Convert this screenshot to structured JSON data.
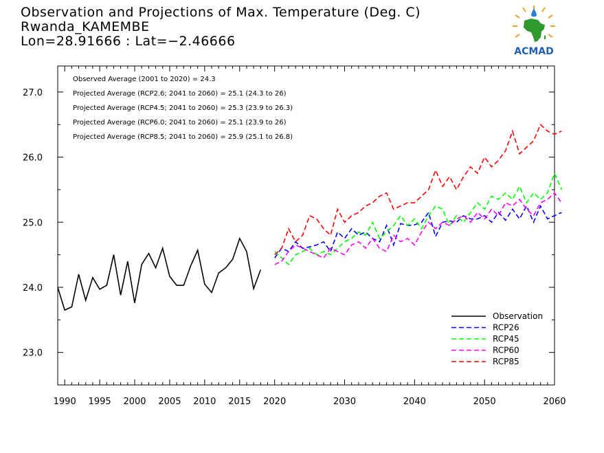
{
  "header": {
    "title": "Observation and Projections of Max. Temperature (Deg. C)",
    "location": "Rwanda_KAMEMBE",
    "coords": "Lon=28.91666 : Lat=−2.46666"
  },
  "logo": {
    "text": "ACMAD",
    "icon": "acmad-africa-logo"
  },
  "annotations": [
    "Observed Average (2001 to 2020) = 24.3",
    "Projected Average (RCP2.6; 2041 to 2060) = 25.1 (24.3 to 26)",
    "Projected Average (RCP4.5; 2041 to 2060) = 25.3 (23.9 to 26.3)",
    "Projected Average (RCP6.0; 2041 to 2060) = 25.1 (23.9 to 26)",
    "Projected Average (RCP8.5; 2041 to 2060) = 25.9 (25.1 to 26.8)"
  ],
  "colors": {
    "Observation": "#000000",
    "RCP26": "#0000ff",
    "RCP45": "#00ff00",
    "RCP60": "#ff00ff",
    "RCP85": "#ff0000"
  },
  "chart_data": {
    "type": "line",
    "xlim": [
      1989,
      2060
    ],
    "ylim": [
      22.5,
      27.4
    ],
    "x_ticks": [
      {
        "value": 1990,
        "label": "1990"
      },
      {
        "value": 1995,
        "label": "1995"
      },
      {
        "value": 2000,
        "label": "2000"
      },
      {
        "value": 2005,
        "label": "2005"
      },
      {
        "value": 2010,
        "label": "2010"
      },
      {
        "value": 2015,
        "label": "2015"
      },
      {
        "value": 2020,
        "label": "2020"
      },
      {
        "value": 2030,
        "label": "2030"
      },
      {
        "value": 2040,
        "label": "2040"
      },
      {
        "value": 2050,
        "label": "2050"
      },
      {
        "value": 2060,
        "label": "2060"
      }
    ],
    "y_ticks": [
      {
        "value": 23.0,
        "label": "23.0"
      },
      {
        "value": 24.0,
        "label": "24.0"
      },
      {
        "value": 25.0,
        "label": "25.0"
      },
      {
        "value": 26.0,
        "label": "26.0"
      },
      {
        "value": 27.0,
        "label": "27.0"
      }
    ],
    "legend_position": "bottom-right",
    "series": [
      {
        "name": "Observation",
        "dashed": false,
        "x_start": 1989,
        "values": [
          24.0,
          23.65,
          23.7,
          24.2,
          23.8,
          24.15,
          23.97,
          24.03,
          24.5,
          23.88,
          24.4,
          23.76,
          24.35,
          24.52,
          24.3,
          24.6,
          24.17,
          24.03,
          24.03,
          24.33,
          24.57,
          24.05,
          23.92,
          24.22,
          24.3,
          24.43,
          24.75,
          24.55,
          23.98,
          24.27
        ]
      },
      {
        "name": "RCP26",
        "dashed": true,
        "x_start": 2020,
        "values": [
          24.45,
          24.6,
          24.55,
          24.7,
          24.6,
          24.62,
          24.65,
          24.7,
          24.55,
          24.85,
          24.75,
          24.9,
          24.8,
          24.85,
          24.75,
          24.7,
          24.95,
          24.65,
          24.98,
          24.95,
          24.96,
          25.0,
          25.15,
          24.78,
          25.0,
          25.02,
          25.0,
          25.1,
          25.05,
          25.05,
          25.1,
          25.0,
          25.15,
          25.03,
          25.2,
          25.05,
          25.25,
          25.0,
          25.25,
          25.05,
          25.1,
          25.15
        ]
      },
      {
        "name": "RCP45",
        "dashed": true,
        "x_start": 2020,
        "values": [
          24.55,
          24.45,
          24.35,
          24.5,
          24.55,
          24.6,
          24.5,
          24.55,
          24.5,
          24.6,
          24.7,
          24.75,
          24.85,
          24.8,
          25.0,
          24.75,
          24.85,
          24.95,
          25.1,
          24.95,
          25.05,
          24.9,
          25.1,
          25.25,
          25.2,
          24.95,
          25.1,
          25.0,
          25.15,
          25.3,
          25.2,
          25.4,
          25.35,
          25.45,
          25.35,
          25.55,
          25.3,
          25.45,
          25.35,
          25.45,
          25.75,
          25.5
        ]
      },
      {
        "name": "RCP60",
        "dashed": true,
        "x_start": 2020,
        "values": [
          24.35,
          24.4,
          24.55,
          24.65,
          24.6,
          24.55,
          24.5,
          24.45,
          24.6,
          24.55,
          24.5,
          24.65,
          24.7,
          24.6,
          24.75,
          24.6,
          24.55,
          24.8,
          24.7,
          24.75,
          24.65,
          24.85,
          25.0,
          24.9,
          25.0,
          24.95,
          25.05,
          25.1,
          25.0,
          25.15,
          25.05,
          25.2,
          25.1,
          25.3,
          25.25,
          25.35,
          25.2,
          25.1,
          25.3,
          25.35,
          25.45,
          25.3
        ]
      },
      {
        "name": "RCP85",
        "dashed": true,
        "x_start": 2020,
        "values": [
          24.5,
          24.6,
          24.9,
          24.7,
          24.8,
          25.1,
          25.05,
          24.9,
          24.8,
          25.2,
          25.0,
          25.1,
          25.15,
          25.25,
          25.3,
          25.4,
          25.45,
          25.2,
          25.25,
          25.3,
          25.3,
          25.4,
          25.5,
          25.8,
          25.55,
          25.7,
          25.5,
          25.7,
          25.85,
          25.75,
          26.0,
          25.85,
          25.95,
          26.1,
          26.4,
          26.05,
          26.15,
          26.25,
          26.5,
          26.4,
          26.35,
          26.4
        ]
      }
    ]
  }
}
